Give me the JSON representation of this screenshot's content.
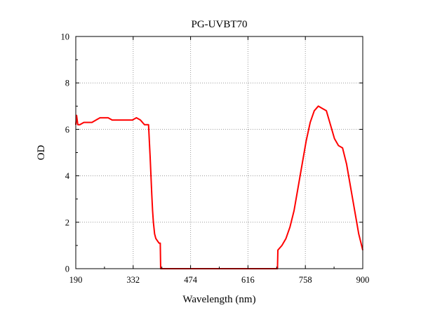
{
  "chart_data": {
    "type": "line",
    "title": "PG-UVBT70",
    "xlabel": "Wavelength (nm)",
    "ylabel": "OD",
    "xlim": [
      190,
      900
    ],
    "ylim": [
      0,
      10
    ],
    "xticks": [
      190,
      332,
      474,
      616,
      758,
      900
    ],
    "yticks": [
      0,
      2,
      4,
      6,
      8,
      10
    ],
    "grid": true,
    "legend": "none",
    "line_color": "#ff0000",
    "series": [
      {
        "x": [
          190,
          192,
          195,
          200,
          210,
          220,
          230,
          240,
          250,
          260,
          270,
          280,
          290,
          300,
          310,
          320,
          330,
          340,
          350,
          360,
          365,
          370,
          372,
          374,
          376,
          378,
          380,
          382,
          385,
          388,
          392,
          396,
          399,
          400,
          420,
          450,
          500,
          550,
          600,
          650,
          689,
          690,
          700,
          710,
          720,
          730,
          740,
          750,
          760,
          770,
          780,
          790,
          800,
          810,
          820,
          830,
          840,
          850,
          860,
          870,
          880,
          890,
          900
        ],
        "y": [
          6.2,
          6.6,
          6.2,
          6.2,
          6.3,
          6.3,
          6.3,
          6.4,
          6.5,
          6.5,
          6.5,
          6.4,
          6.4,
          6.4,
          6.4,
          6.4,
          6.4,
          6.5,
          6.4,
          6.2,
          6.2,
          6.2,
          5.5,
          4.8,
          4.0,
          3.2,
          2.5,
          2.0,
          1.5,
          1.3,
          1.2,
          1.1,
          1.1,
          0.0,
          0.0,
          0.0,
          0.0,
          0.0,
          0.0,
          0.0,
          0.0,
          0.8,
          1.0,
          1.3,
          1.8,
          2.5,
          3.5,
          4.5,
          5.5,
          6.3,
          6.8,
          7.0,
          6.9,
          6.8,
          6.2,
          5.6,
          5.3,
          5.2,
          4.5,
          3.5,
          2.5,
          1.5,
          0.8
        ]
      }
    ]
  }
}
